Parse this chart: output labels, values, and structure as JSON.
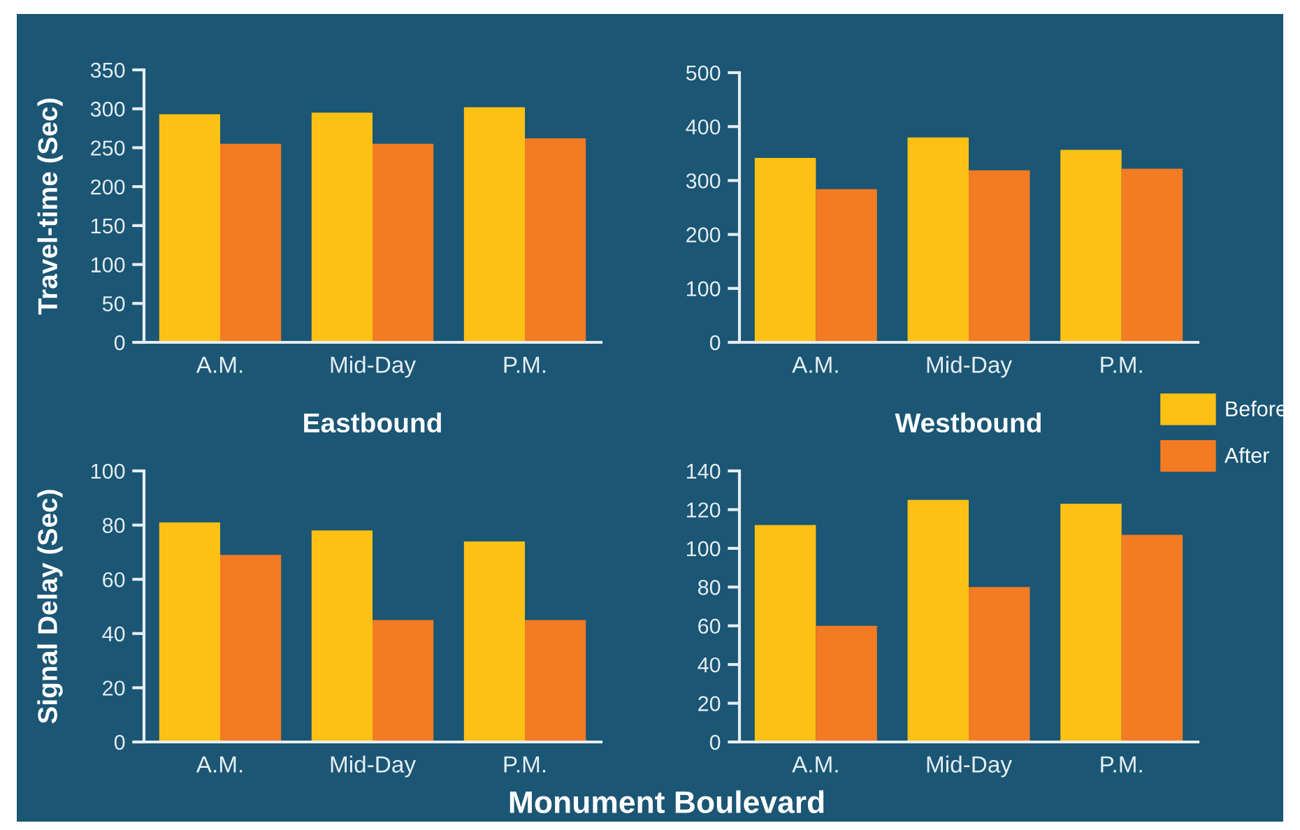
{
  "chart_data": [
    {
      "type": "bar",
      "categories": [
        "A.M.",
        "Mid-Day",
        "P.M."
      ],
      "xlabel": "Eastbound",
      "ylabel": "Travel-time (Sec)",
      "ylim": [
        0,
        350
      ],
      "yticks": [
        0,
        50,
        100,
        150,
        200,
        250,
        300,
        350
      ],
      "series": [
        {
          "color": "#fdc115",
          "values": [
            293,
            295,
            302
          ]
        },
        {
          "color": "#f37b23",
          "values": [
            255,
            255,
            262
          ]
        }
      ]
    },
    {
      "type": "bar",
      "categories": [
        "A.M.",
        "Mid-Day",
        "P.M."
      ],
      "xlabel": "Westbound",
      "ylim": [
        0,
        500
      ],
      "yticks": [
        0,
        100,
        200,
        300,
        400,
        500
      ],
      "legend": "bottom right",
      "series": [
        {
          "name": "Before",
          "color": "#fdc115",
          "values": [
            342,
            380,
            357
          ]
        },
        {
          "name": "After",
          "color": "#f37b23",
          "values": [
            284,
            319,
            322
          ]
        }
      ]
    },
    {
      "type": "bar",
      "categories": [
        "A.M.",
        "Mid-Day",
        "P.M."
      ],
      "ylabel": "Signal Delay (Sec)",
      "ylim": [
        0,
        100
      ],
      "yticks": [
        0,
        20,
        40,
        60,
        80,
        100
      ],
      "series": [
        {
          "color": "#fdc115",
          "values": [
            81,
            78,
            74
          ]
        },
        {
          "color": "#f37b23",
          "values": [
            69,
            45,
            45
          ]
        }
      ]
    },
    {
      "type": "bar",
      "categories": [
        "A.M.",
        "Mid-Day",
        "P.M."
      ],
      "ylim": [
        0,
        140
      ],
      "yticks": [
        0,
        20,
        40,
        60,
        80,
        100,
        120,
        140
      ],
      "annotations": [
        "Monument Boulevard"
      ],
      "series": [
        {
          "color": "#fdc115",
          "values": [
            112,
            125,
            123
          ]
        },
        {
          "color": "#f37b23",
          "values": [
            60,
            80,
            107
          ]
        }
      ]
    }
  ]
}
